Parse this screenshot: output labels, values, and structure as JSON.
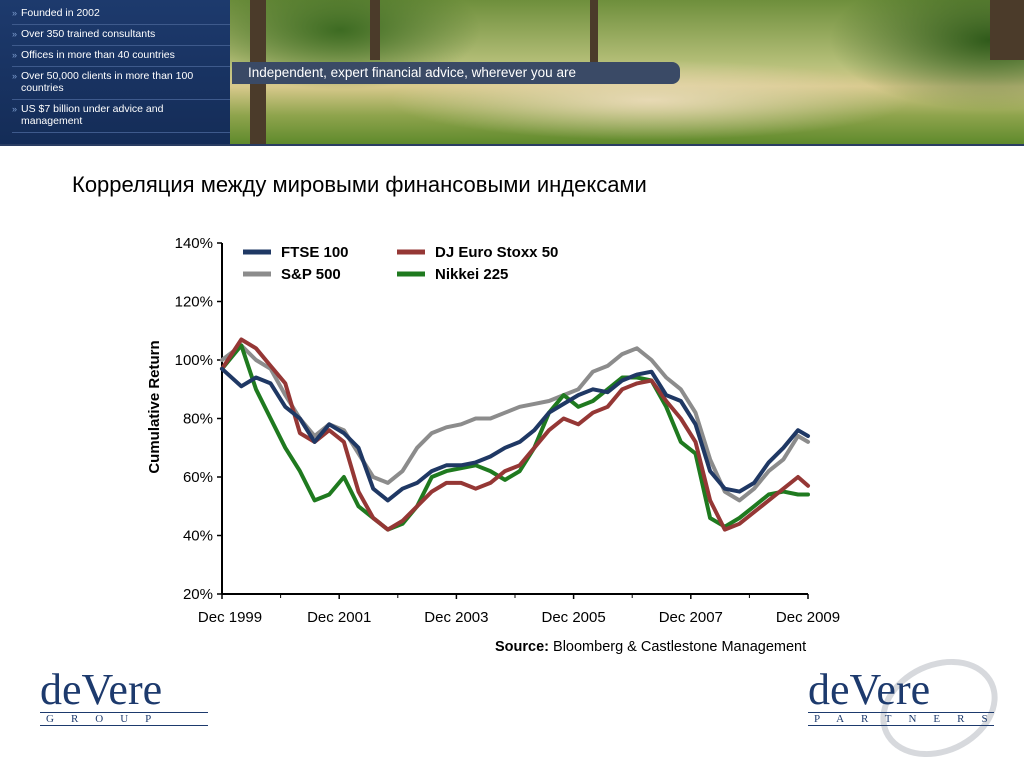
{
  "banner": {
    "facts": [
      "Founded in 2002",
      "Over 350 trained consultants",
      "Offices in more than 40 countries",
      "Over 50,000 clients in more than 100 countries",
      "US $7 billion under advice and management"
    ],
    "tagline": "Independent, expert financial advice, wherever you are"
  },
  "page_title": "Корреляция между мировыми финансовыми индексами",
  "chart_data": {
    "type": "line",
    "ylabel": "Cumulative Return",
    "xlabel": "",
    "ylim": [
      0.2,
      1.4
    ],
    "yticks": [
      "20%",
      "40%",
      "60%",
      "80%",
      "100%",
      "120%",
      "140%"
    ],
    "x_ticks": [
      "Dec 1999",
      "Dec 2001",
      "Dec 2003",
      "Dec 2005",
      "Dec 2007",
      "Dec 2009"
    ],
    "x_range": [
      1999.92,
      2009.92
    ],
    "grid": false,
    "legend": "top-left",
    "x": [
      1999.92,
      2000.25,
      2000.5,
      2000.75,
      2001.0,
      2001.25,
      2001.5,
      2001.75,
      2002.0,
      2002.25,
      2002.5,
      2002.75,
      2003.0,
      2003.25,
      2003.5,
      2003.75,
      2004.0,
      2004.25,
      2004.5,
      2004.75,
      2005.0,
      2005.25,
      2005.5,
      2005.75,
      2006.0,
      2006.25,
      2006.5,
      2006.75,
      2007.0,
      2007.25,
      2007.5,
      2007.75,
      2008.0,
      2008.25,
      2008.5,
      2008.75,
      2009.0,
      2009.25,
      2009.5,
      2009.75,
      2009.92
    ],
    "series": [
      {
        "name": "FTSE 100",
        "color": "#1f3864",
        "values": [
          0.97,
          0.91,
          0.94,
          0.92,
          0.84,
          0.8,
          0.72,
          0.78,
          0.75,
          0.7,
          0.56,
          0.52,
          0.56,
          0.58,
          0.62,
          0.64,
          0.64,
          0.65,
          0.67,
          0.7,
          0.72,
          0.76,
          0.82,
          0.85,
          0.88,
          0.9,
          0.89,
          0.93,
          0.95,
          0.96,
          0.88,
          0.86,
          0.78,
          0.62,
          0.56,
          0.55,
          0.58,
          0.65,
          0.7,
          0.76,
          0.74
        ]
      },
      {
        "name": "DJ Euro Stoxx 50",
        "color": "#953735",
        "values": [
          0.97,
          1.07,
          1.04,
          0.98,
          0.92,
          0.75,
          0.72,
          0.76,
          0.72,
          0.55,
          0.46,
          0.42,
          0.45,
          0.5,
          0.55,
          0.58,
          0.58,
          0.56,
          0.58,
          0.62,
          0.64,
          0.7,
          0.76,
          0.8,
          0.78,
          0.82,
          0.84,
          0.9,
          0.92,
          0.93,
          0.86,
          0.8,
          0.72,
          0.52,
          0.42,
          0.44,
          0.48,
          0.52,
          0.56,
          0.6,
          0.57
        ]
      },
      {
        "name": "S&P 500",
        "color": "#8c8c8c",
        "values": [
          1.0,
          1.05,
          1.0,
          0.97,
          0.88,
          0.8,
          0.74,
          0.78,
          0.76,
          0.68,
          0.6,
          0.58,
          0.62,
          0.7,
          0.75,
          0.77,
          0.78,
          0.8,
          0.8,
          0.82,
          0.84,
          0.85,
          0.86,
          0.88,
          0.9,
          0.96,
          0.98,
          1.02,
          1.04,
          1.0,
          0.94,
          0.9,
          0.82,
          0.66,
          0.55,
          0.52,
          0.56,
          0.62,
          0.66,
          0.74,
          0.72
        ]
      },
      {
        "name": "Nikkei 225",
        "color": "#1f7a1f",
        "values": [
          0.97,
          1.05,
          0.9,
          0.8,
          0.7,
          0.62,
          0.52,
          0.54,
          0.6,
          0.5,
          0.46,
          0.42,
          0.44,
          0.5,
          0.6,
          0.62,
          0.63,
          0.64,
          0.62,
          0.59,
          0.62,
          0.7,
          0.82,
          0.88,
          0.84,
          0.86,
          0.9,
          0.94,
          0.94,
          0.93,
          0.84,
          0.72,
          0.68,
          0.46,
          0.43,
          0.46,
          0.5,
          0.54,
          0.55,
          0.54,
          0.54
        ]
      }
    ]
  },
  "source": {
    "label": "Source:",
    "text": "Bloomberg & Castlestone Management"
  },
  "logos": {
    "left": {
      "word": "deVere",
      "sub": "GROUP"
    },
    "right": {
      "word": "deVere",
      "sub": "PARTNERS"
    }
  }
}
